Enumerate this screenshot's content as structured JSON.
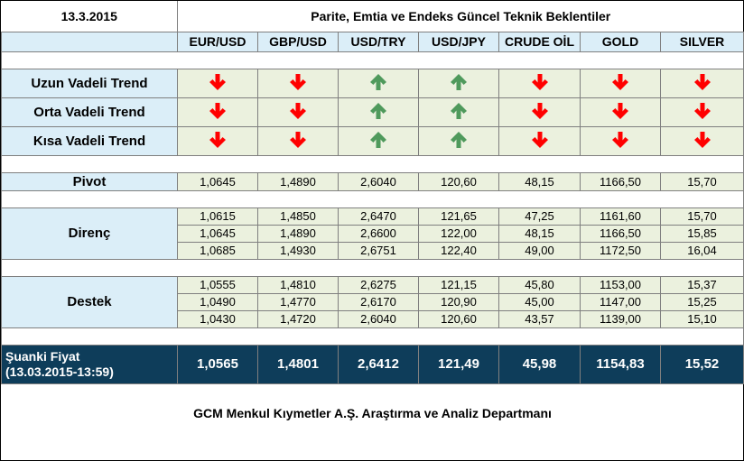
{
  "header": {
    "date": "13.3.2015",
    "title": "Parite, Emtia ve Endeks Güncel Teknik Beklentiler"
  },
  "columns": [
    "EUR/USD",
    "GBP/USD",
    "USD/TRY",
    "USD/JPY",
    "CRUDE OİL",
    "GOLD",
    "SILVER"
  ],
  "colors": {
    "down": "#ff0000",
    "up": "#4f9a5c",
    "live_bg": "#0e3d5a",
    "cell_blue": "#dbeef8",
    "cell_green": "#ebf1de"
  },
  "trends": [
    {
      "label": "Uzun Vadeli Trend",
      "directions": [
        "down",
        "down",
        "up",
        "up",
        "down",
        "down",
        "down"
      ]
    },
    {
      "label": "Orta Vadeli Trend",
      "directions": [
        "down",
        "down",
        "up",
        "up",
        "down",
        "down",
        "down"
      ]
    },
    {
      "label": "Kısa Vadeli Trend",
      "directions": [
        "down",
        "down",
        "up",
        "up",
        "down",
        "down",
        "down"
      ]
    }
  ],
  "pivot": {
    "label": "Pivot",
    "values": [
      "1,0645",
      "1,4890",
      "2,6040",
      "120,60",
      "48,15",
      "1166,50",
      "15,70"
    ]
  },
  "resistance": {
    "label": "Direnç",
    "rows": [
      [
        "1,0615",
        "1,4850",
        "2,6470",
        "121,65",
        "47,25",
        "1161,60",
        "15,70"
      ],
      [
        "1,0645",
        "1,4890",
        "2,6600",
        "122,00",
        "48,15",
        "1166,50",
        "15,85"
      ],
      [
        "1,0685",
        "1,4930",
        "2,6751",
        "122,40",
        "49,00",
        "1172,50",
        "16,04"
      ]
    ]
  },
  "support": {
    "label": "Destek",
    "rows": [
      [
        "1,0555",
        "1,4810",
        "2,6275",
        "121,15",
        "45,80",
        "1153,00",
        "15,37"
      ],
      [
        "1,0490",
        "1,4770",
        "2,6170",
        "120,90",
        "45,00",
        "1147,00",
        "15,25"
      ],
      [
        "1,0430",
        "1,4720",
        "2,6040",
        "120,60",
        "43,57",
        "1139,00",
        "15,10"
      ]
    ]
  },
  "live_price": {
    "label_line1": "Şuanki Fiyat",
    "label_line2": "(13.03.2015-13:59)",
    "values": [
      "1,0565",
      "1,4801",
      "2,6412",
      "121,49",
      "45,98",
      "1154,83",
      "15,52"
    ]
  },
  "footer": "GCM Menkul Kıymetler A.Ş. Araştırma ve Analiz Departmanı"
}
